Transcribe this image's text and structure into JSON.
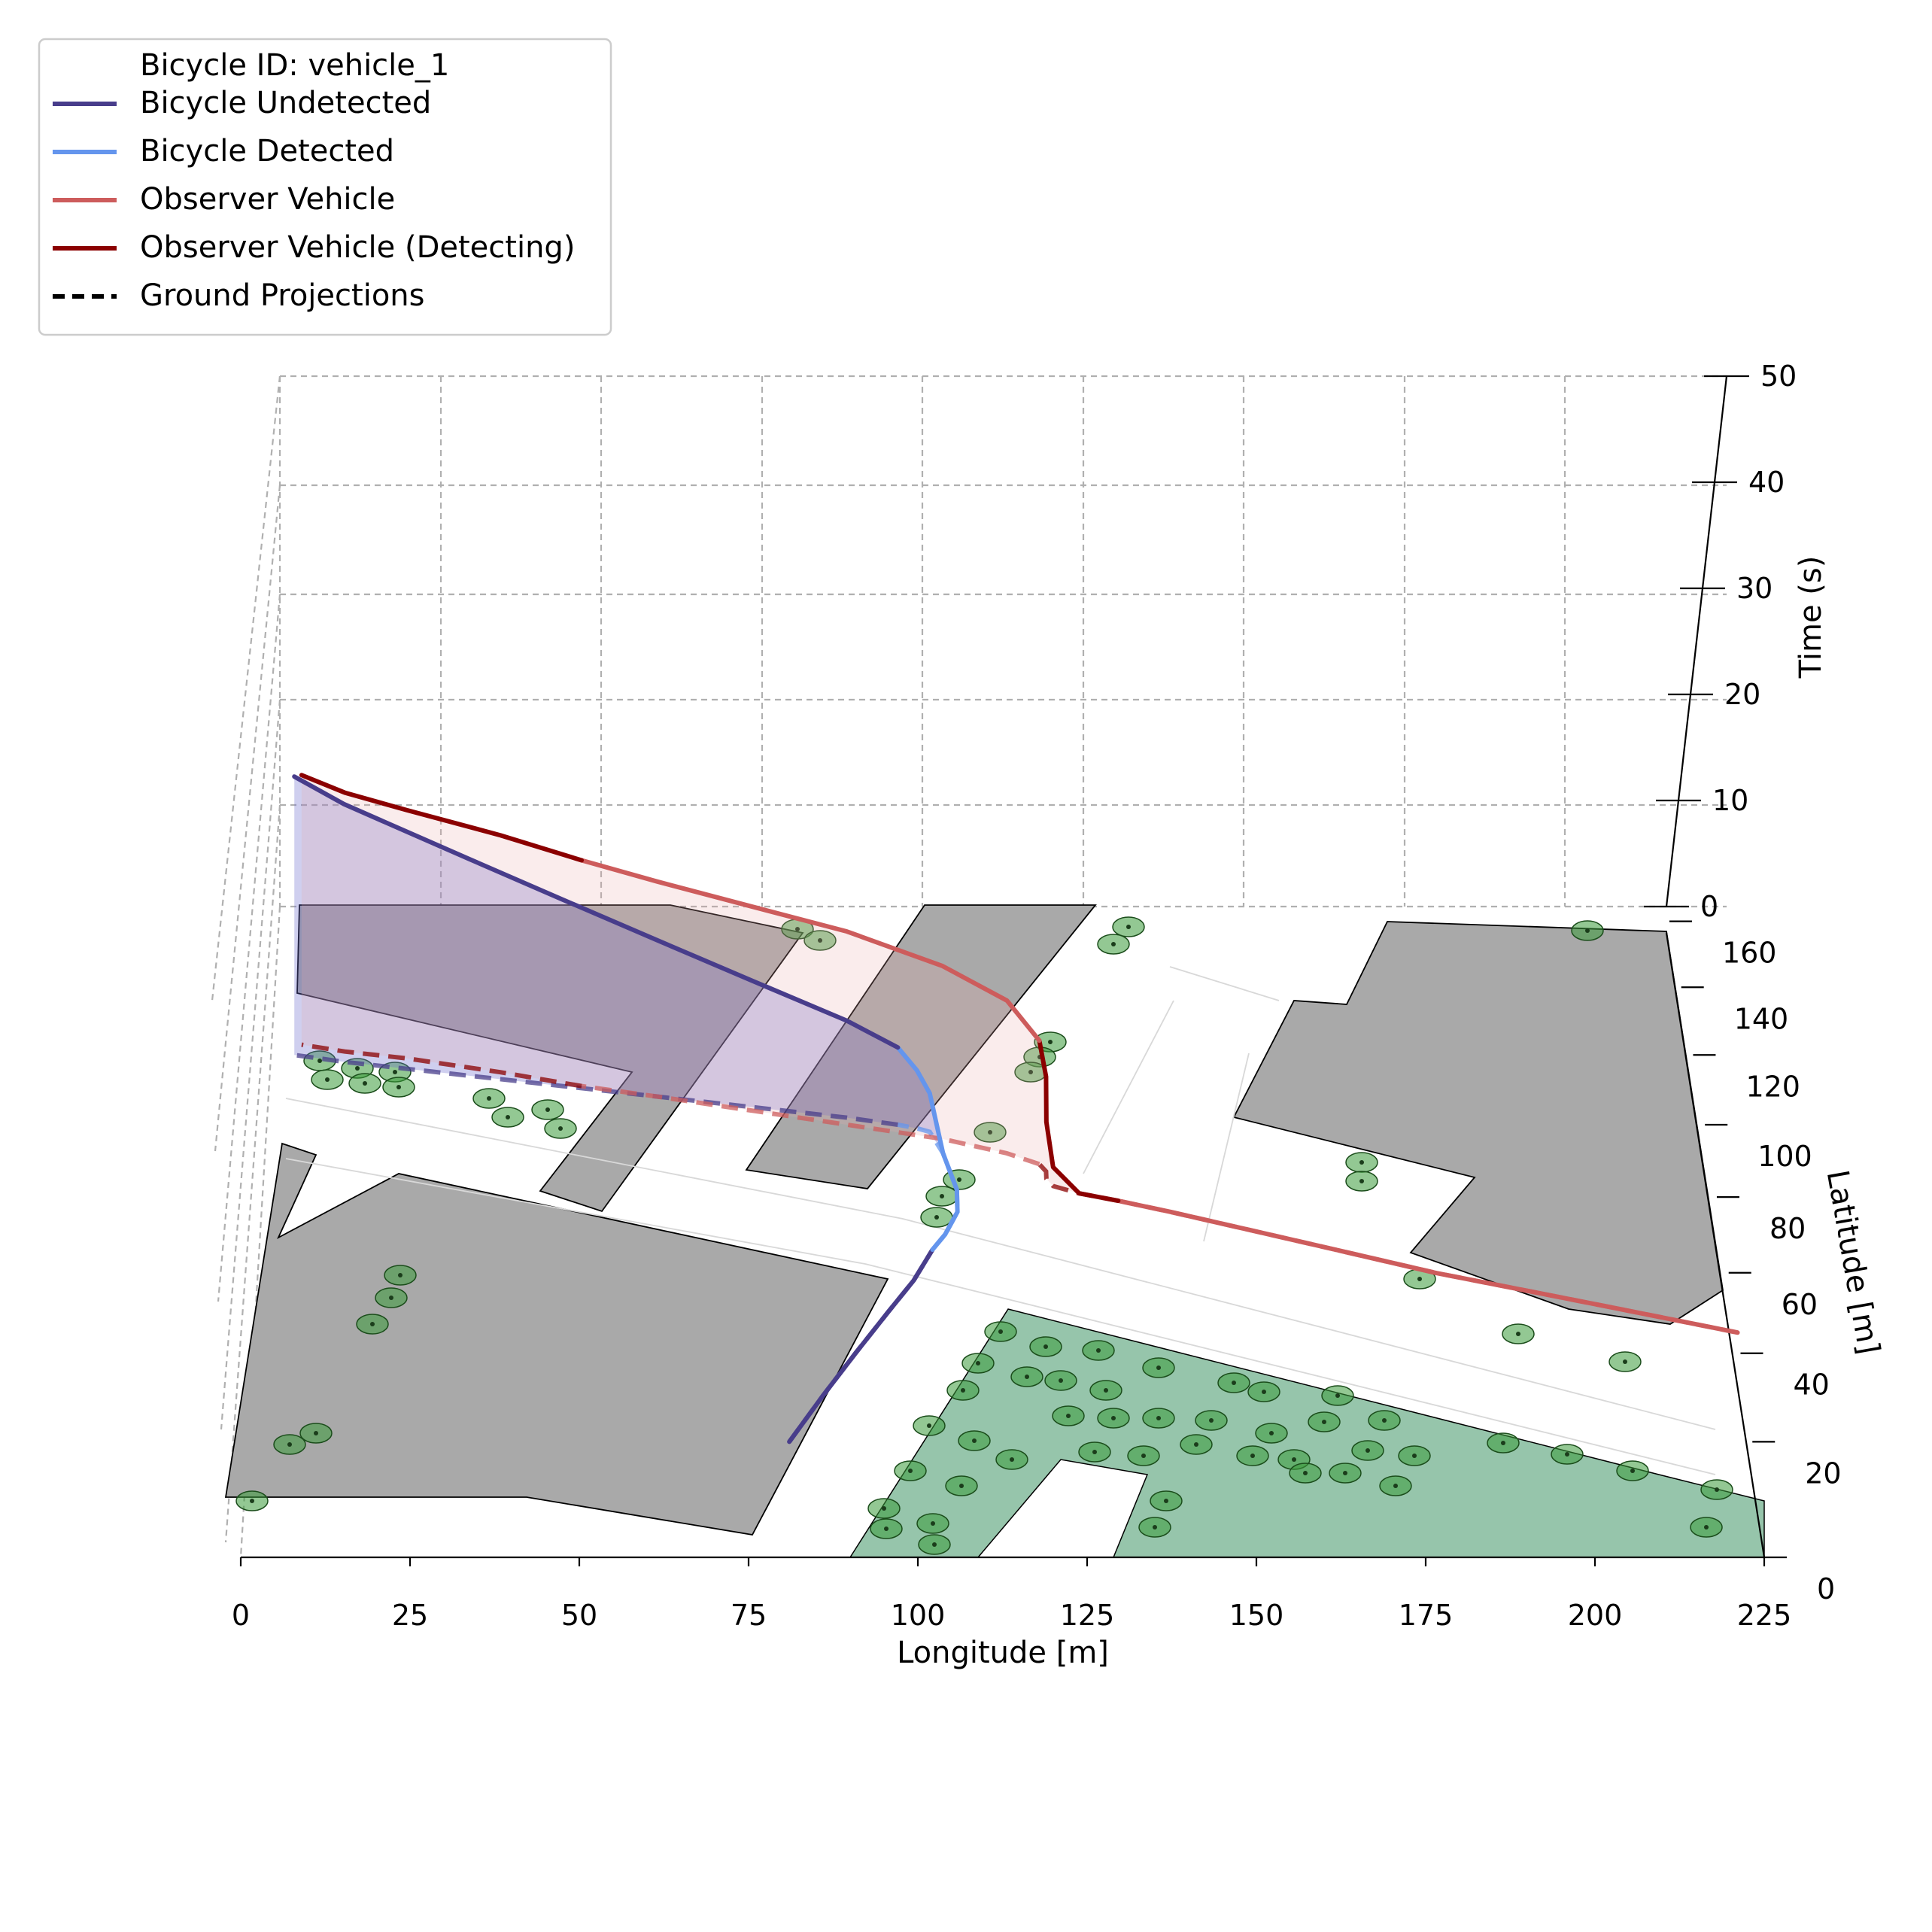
{
  "chart_data": {
    "type": "line",
    "projection": "3d",
    "title": "",
    "xlabel": "Longitude [m]",
    "ylabel": "Latitude [m]",
    "zlabel": "Time (s)",
    "xlim": [
      0,
      225
    ],
    "ylim": [
      0,
      165
    ],
    "zlim": [
      0,
      50
    ],
    "x_ticks": [
      "0",
      "25",
      "50",
      "75",
      "100",
      "125",
      "150",
      "175",
      "200",
      "225"
    ],
    "y_ticks": [
      "0",
      "20",
      "40",
      "60",
      "80",
      "100",
      "120",
      "140",
      "160"
    ],
    "z_ticks": [
      "0",
      "10",
      "20",
      "30",
      "40",
      "50"
    ],
    "grid": true,
    "legend_position": "top-left",
    "legend": {
      "header": "Bicycle ID: vehicle_1",
      "entries": [
        {
          "label": "Bicycle Undetected",
          "color": "#483d8b",
          "style": "solid"
        },
        {
          "label": "Bicycle Detected",
          "color": "#6495ed",
          "style": "solid"
        },
        {
          "label": "Observer Vehicle",
          "color": "#cd5c5c",
          "style": "solid"
        },
        {
          "label": "Observer Vehicle (Detecting)",
          "color": "#8b0000",
          "style": "solid"
        },
        {
          "label": "Ground Projections",
          "color": "#000000",
          "style": "dashed"
        }
      ]
    },
    "series": [
      {
        "name": "Bicycle Undetected",
        "color": "#483d8b",
        "points": [
          [
            81,
            20,
            0
          ],
          [
            86,
            30,
            0
          ],
          [
            91,
            40,
            0
          ],
          [
            96,
            50,
            0
          ],
          [
            100,
            58,
            0
          ],
          [
            103,
            66,
            0
          ]
        ]
      },
      {
        "name": "Bicycle Detected",
        "color": "#6495ed",
        "points": [
          [
            103,
            66,
            0
          ],
          [
            105,
            70,
            0
          ],
          [
            107,
            76,
            0
          ],
          [
            107,
            82,
            0
          ],
          [
            106,
            87,
            0
          ],
          [
            105,
            92,
            0
          ],
          [
            104,
            95,
            2
          ],
          [
            103,
            98,
            4
          ],
          [
            101,
            99,
            6
          ],
          [
            98,
            100,
            8
          ]
        ]
      },
      {
        "name": "Bicycle Undetected",
        "color": "#483d8b",
        "points": [
          [
            98,
            100,
            8
          ],
          [
            90,
            102,
            10
          ],
          [
            75,
            105,
            13
          ],
          [
            60,
            108,
            16
          ],
          [
            45,
            111,
            19
          ],
          [
            30,
            114,
            22
          ],
          [
            20,
            116,
            24
          ],
          [
            10,
            118,
            26
          ],
          [
            2,
            120,
            28
          ]
        ]
      },
      {
        "name": "Observer Vehicle",
        "color": "#cd5c5c",
        "points": [
          [
            225,
            45,
            0
          ],
          [
            210,
            50,
            0
          ],
          [
            195,
            55,
            0
          ],
          [
            180,
            60,
            0
          ],
          [
            165,
            66,
            0
          ],
          [
            150,
            72,
            0
          ],
          [
            140,
            76,
            0
          ],
          [
            132,
            79,
            0
          ]
        ]
      },
      {
        "name": "Observer Vehicle (Detecting)",
        "color": "#8b0000",
        "points": [
          [
            132,
            79,
            0
          ],
          [
            126,
            81,
            0
          ],
          [
            122,
            83,
            2
          ],
          [
            121,
            85,
            6
          ],
          [
            121,
            87,
            10
          ],
          [
            120,
            89,
            13
          ]
        ]
      },
      {
        "name": "Observer Vehicle",
        "color": "#cd5c5c",
        "points": [
          [
            120,
            89,
            13
          ],
          [
            115,
            92,
            16
          ],
          [
            105,
            96,
            18
          ],
          [
            90,
            100,
            20
          ],
          [
            75,
            104,
            21
          ],
          [
            60,
            108,
            22
          ],
          [
            48,
            111,
            23
          ]
        ]
      },
      {
        "name": "Observer Vehicle (Detecting)",
        "color": "#8b0000",
        "points": [
          [
            48,
            111,
            23
          ],
          [
            35,
            115,
            24
          ],
          [
            20,
            119,
            25
          ],
          [
            10,
            121,
            26
          ],
          [
            3,
            123,
            27
          ]
        ]
      }
    ]
  }
}
